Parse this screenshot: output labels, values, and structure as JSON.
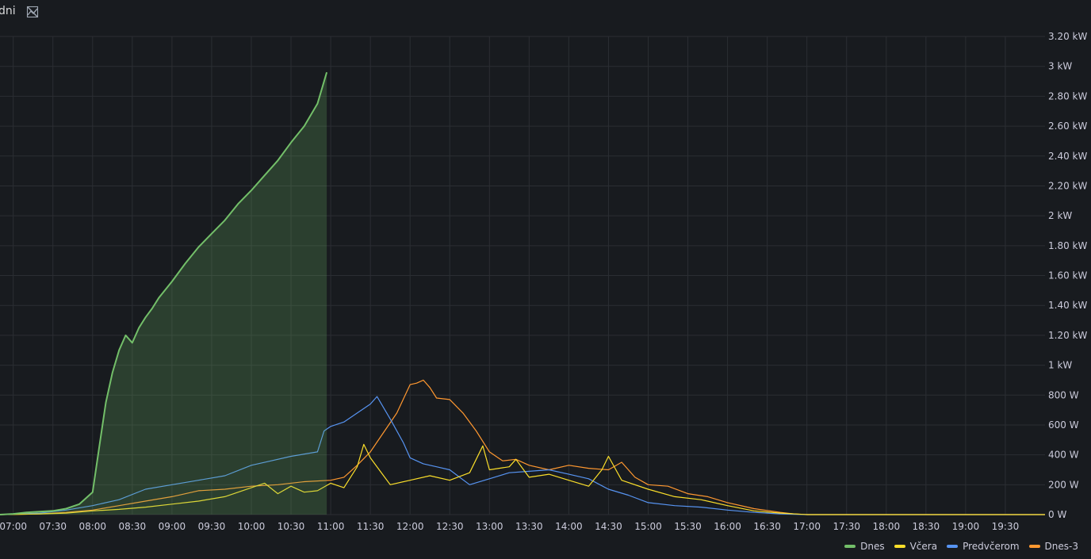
{
  "panel": {
    "title": "dni"
  },
  "colors": {
    "background": "#181b1f",
    "grid": "#2b2e33",
    "dnes": "#73bf69",
    "vcera": "#fade2a",
    "predvcerom": "#5794f2",
    "dnes3": "#ff9830"
  },
  "chart_data": {
    "type": "line",
    "x_ticks": [
      "07:00",
      "07:30",
      "08:00",
      "08:30",
      "09:00",
      "09:30",
      "10:00",
      "10:30",
      "11:00",
      "11:30",
      "12:00",
      "12:30",
      "13:00",
      "13:30",
      "14:00",
      "14:30",
      "15:00",
      "15:30",
      "16:00",
      "16:30",
      "17:00",
      "17:30",
      "18:00",
      "18:30",
      "19:00",
      "19:30"
    ],
    "y_ticks": [
      "0 W",
      "200 W",
      "400 W",
      "600 W",
      "800 W",
      "1 kW",
      "1.20 kW",
      "1.40 kW",
      "1.60 kW",
      "1.80 kW",
      "2 kW",
      "2.20 kW",
      "2.40 kW",
      "2.60 kW",
      "2.80 kW",
      "3 kW",
      "3.20 kW"
    ],
    "y_unit": "W",
    "ylim": [
      0,
      3200
    ],
    "xlim": [
      "06:50",
      "20:00"
    ],
    "grid": true,
    "legend_position": "bottom-right",
    "series": [
      {
        "name": "Dnes",
        "color": "#73bf69",
        "fill": true,
        "points": [
          [
            "06:50",
            0
          ],
          [
            "07:00",
            5
          ],
          [
            "07:10",
            15
          ],
          [
            "07:20",
            20
          ],
          [
            "07:30",
            25
          ],
          [
            "07:40",
            40
          ],
          [
            "07:50",
            70
          ],
          [
            "08:00",
            150
          ],
          [
            "08:05",
            450
          ],
          [
            "08:10",
            750
          ],
          [
            "08:15",
            950
          ],
          [
            "08:20",
            1100
          ],
          [
            "08:25",
            1200
          ],
          [
            "08:30",
            1150
          ],
          [
            "08:35",
            1250
          ],
          [
            "08:40",
            1320
          ],
          [
            "08:45",
            1380
          ],
          [
            "08:50",
            1450
          ],
          [
            "09:00",
            1560
          ],
          [
            "09:10",
            1680
          ],
          [
            "09:20",
            1790
          ],
          [
            "09:30",
            1880
          ],
          [
            "09:40",
            1970
          ],
          [
            "09:50",
            2080
          ],
          [
            "10:00",
            2170
          ],
          [
            "10:10",
            2270
          ],
          [
            "10:20",
            2370
          ],
          [
            "10:30",
            2490
          ],
          [
            "10:40",
            2600
          ],
          [
            "10:50",
            2750
          ],
          [
            "10:57",
            2960
          ]
        ]
      },
      {
        "name": "Včera",
        "color": "#fade2a",
        "points": [
          [
            "06:50",
            0
          ],
          [
            "07:20",
            5
          ],
          [
            "07:40",
            10
          ],
          [
            "08:00",
            25
          ],
          [
            "08:20",
            35
          ],
          [
            "08:40",
            50
          ],
          [
            "09:00",
            70
          ],
          [
            "09:20",
            90
          ],
          [
            "09:40",
            120
          ],
          [
            "10:00",
            180
          ],
          [
            "10:10",
            210
          ],
          [
            "10:20",
            140
          ],
          [
            "10:30",
            190
          ],
          [
            "10:40",
            150
          ],
          [
            "10:50",
            160
          ],
          [
            "11:00",
            210
          ],
          [
            "11:10",
            180
          ],
          [
            "11:20",
            320
          ],
          [
            "11:25",
            470
          ],
          [
            "11:30",
            380
          ],
          [
            "11:40",
            260
          ],
          [
            "11:45",
            200
          ],
          [
            "12:00",
            230
          ],
          [
            "12:15",
            260
          ],
          [
            "12:30",
            230
          ],
          [
            "12:45",
            280
          ],
          [
            "12:55",
            460
          ],
          [
            "13:00",
            300
          ],
          [
            "13:15",
            320
          ],
          [
            "13:20",
            370
          ],
          [
            "13:30",
            250
          ],
          [
            "13:45",
            270
          ],
          [
            "14:00",
            230
          ],
          [
            "14:15",
            190
          ],
          [
            "14:25",
            300
          ],
          [
            "14:30",
            390
          ],
          [
            "14:40",
            230
          ],
          [
            "15:00",
            170
          ],
          [
            "15:20",
            120
          ],
          [
            "15:40",
            100
          ],
          [
            "16:00",
            60
          ],
          [
            "16:20",
            25
          ],
          [
            "16:40",
            10
          ],
          [
            "17:00",
            0
          ],
          [
            "20:00",
            0
          ]
        ]
      },
      {
        "name": "Predvčerom",
        "color": "#5794f2",
        "points": [
          [
            "06:50",
            0
          ],
          [
            "07:20",
            10
          ],
          [
            "07:40",
            30
          ],
          [
            "08:00",
            60
          ],
          [
            "08:20",
            100
          ],
          [
            "08:40",
            170
          ],
          [
            "09:00",
            200
          ],
          [
            "09:20",
            230
          ],
          [
            "09:40",
            260
          ],
          [
            "10:00",
            330
          ],
          [
            "10:15",
            360
          ],
          [
            "10:30",
            390
          ],
          [
            "10:50",
            420
          ],
          [
            "10:55",
            560
          ],
          [
            "11:00",
            590
          ],
          [
            "11:10",
            620
          ],
          [
            "11:20",
            680
          ],
          [
            "11:30",
            740
          ],
          [
            "11:35",
            790
          ],
          [
            "11:45",
            640
          ],
          [
            "11:55",
            480
          ],
          [
            "12:00",
            380
          ],
          [
            "12:10",
            340
          ],
          [
            "12:20",
            320
          ],
          [
            "12:30",
            300
          ],
          [
            "12:45",
            200
          ],
          [
            "13:00",
            240
          ],
          [
            "13:15",
            280
          ],
          [
            "13:30",
            290
          ],
          [
            "13:45",
            300
          ],
          [
            "14:00",
            270
          ],
          [
            "14:15",
            240
          ],
          [
            "14:30",
            170
          ],
          [
            "14:45",
            130
          ],
          [
            "15:00",
            80
          ],
          [
            "15:20",
            60
          ],
          [
            "15:40",
            50
          ],
          [
            "16:00",
            30
          ],
          [
            "16:20",
            15
          ],
          [
            "16:40",
            5
          ],
          [
            "17:00",
            0
          ],
          [
            "20:00",
            0
          ]
        ]
      },
      {
        "name": "Dnes-3",
        "color": "#ff9830",
        "points": [
          [
            "06:50",
            0
          ],
          [
            "07:20",
            5
          ],
          [
            "07:40",
            15
          ],
          [
            "08:00",
            30
          ],
          [
            "08:20",
            60
          ],
          [
            "08:40",
            90
          ],
          [
            "09:00",
            120
          ],
          [
            "09:20",
            160
          ],
          [
            "09:40",
            170
          ],
          [
            "10:00",
            190
          ],
          [
            "10:20",
            200
          ],
          [
            "10:40",
            220
          ],
          [
            "11:00",
            230
          ],
          [
            "11:10",
            250
          ],
          [
            "11:20",
            330
          ],
          [
            "11:30",
            420
          ],
          [
            "11:40",
            550
          ],
          [
            "11:50",
            680
          ],
          [
            "12:00",
            870
          ],
          [
            "12:05",
            880
          ],
          [
            "12:10",
            900
          ],
          [
            "12:15",
            850
          ],
          [
            "12:20",
            780
          ],
          [
            "12:30",
            770
          ],
          [
            "12:40",
            680
          ],
          [
            "12:50",
            560
          ],
          [
            "13:00",
            420
          ],
          [
            "13:10",
            360
          ],
          [
            "13:20",
            370
          ],
          [
            "13:30",
            330
          ],
          [
            "13:45",
            300
          ],
          [
            "14:00",
            330
          ],
          [
            "14:15",
            310
          ],
          [
            "14:30",
            300
          ],
          [
            "14:40",
            350
          ],
          [
            "14:50",
            250
          ],
          [
            "15:00",
            200
          ],
          [
            "15:15",
            190
          ],
          [
            "15:30",
            140
          ],
          [
            "15:45",
            120
          ],
          [
            "16:00",
            80
          ],
          [
            "16:20",
            40
          ],
          [
            "16:40",
            15
          ],
          [
            "16:50",
            5
          ],
          [
            "17:00",
            0
          ],
          [
            "20:00",
            0
          ]
        ]
      }
    ]
  }
}
